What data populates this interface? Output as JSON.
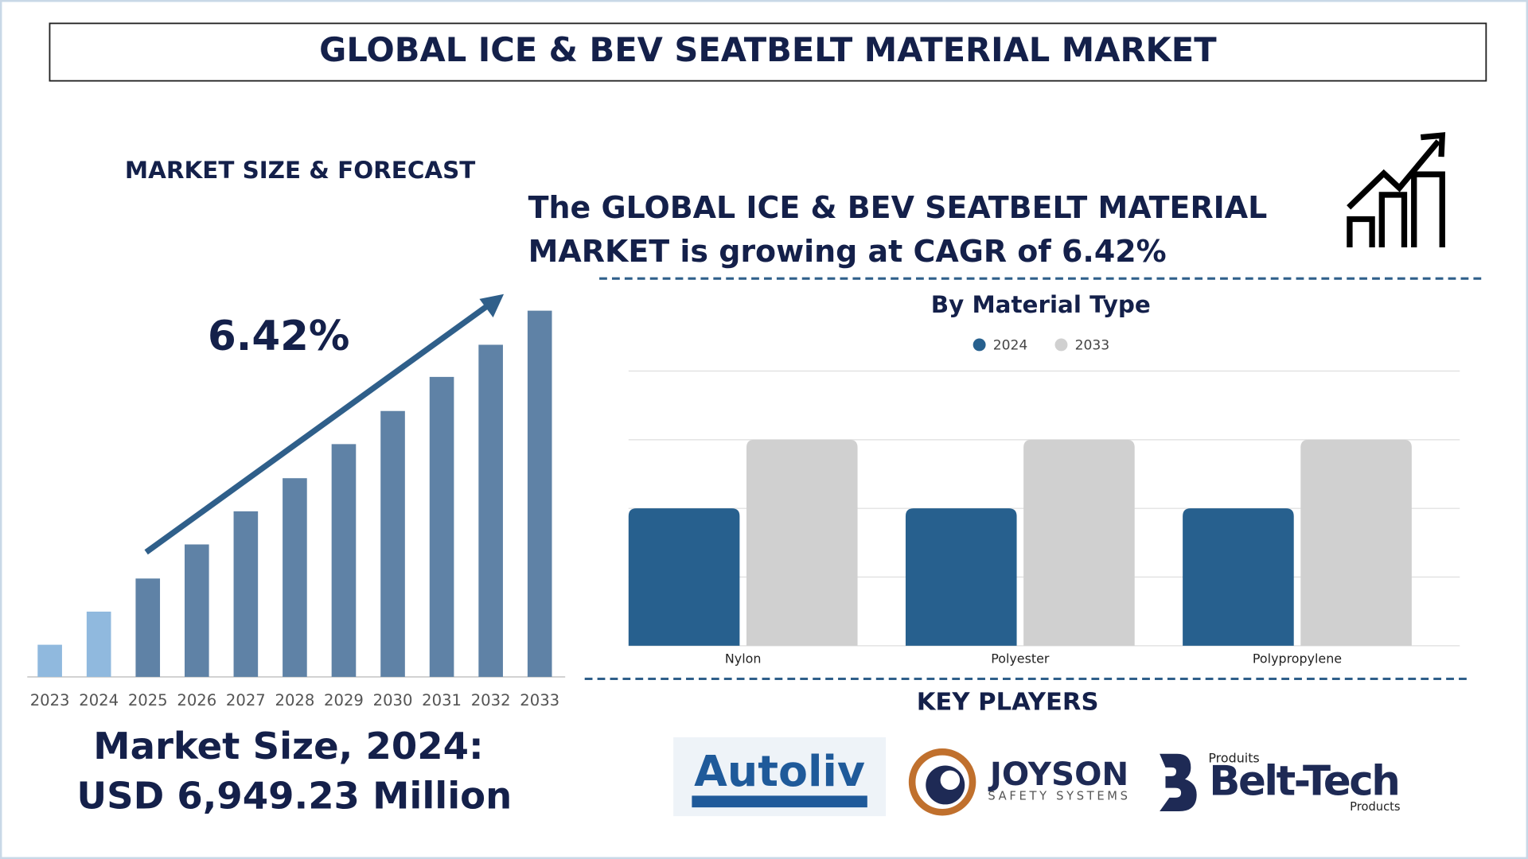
{
  "title": "GLOBAL ICE & BEV SEATBELT MATERIAL MARKET",
  "forecast_heading": "MARKET SIZE & FORECAST",
  "cagr": "6.42%",
  "headline": [
    "The GLOBAL ICE & BEV SEATBELT MATERIAL",
    "MARKET is growing at CAGR of 6.42%"
  ],
  "market_size_label": "Market Size, 2024:",
  "market_size_value": "USD 6,949.23 Million",
  "key_players_heading": "KEY PLAYERS",
  "players": {
    "autoliv": "Autoliv",
    "joyson": "JOYSON",
    "joyson_sub": "SAFETY SYSTEMS",
    "belttech_top": "Produits",
    "belttech": "Belt-Tech",
    "belttech_bottom": "Products"
  },
  "chart_data": [
    {
      "type": "bar",
      "categories": [
        "2023",
        "2024",
        "2025",
        "2026",
        "2027",
        "2028",
        "2029",
        "2030",
        "2031",
        "2032",
        "2033"
      ],
      "values": [
        33,
        67,
        101,
        136,
        170,
        204,
        239,
        273,
        308,
        341,
        376
      ],
      "colors": [
        "#90b9de",
        "#90b9de",
        "#5f82a6",
        "#5f82a6",
        "#5f82a6",
        "#5f82a6",
        "#5f82a6",
        "#5f82a6",
        "#5f82a6",
        "#5f82a6",
        "#5f82a6"
      ],
      "ylim": [
        0,
        400
      ]
    },
    {
      "type": "grouped-bar",
      "title": "By Material Type",
      "categories": [
        "Nylon",
        "Polyester",
        "Polypropylene"
      ],
      "series": [
        {
          "name": "2024",
          "color": "#27608e",
          "values": [
            2,
            2,
            2
          ]
        },
        {
          "name": "2033",
          "color": "#d0d0d0",
          "values": [
            3,
            3,
            3
          ]
        }
      ],
      "ylim": [
        0,
        4
      ],
      "yticks": [
        0,
        1,
        2,
        3,
        4
      ],
      "grid": true
    }
  ]
}
